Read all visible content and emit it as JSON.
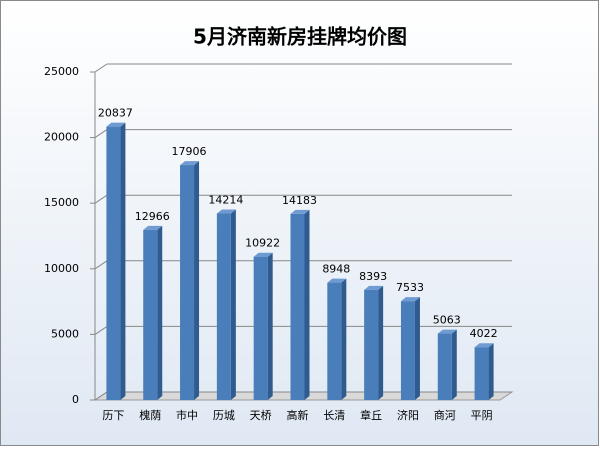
{
  "chart_data": {
    "type": "bar",
    "title": "5月济南新房挂牌均价图",
    "categories": [
      "历下",
      "槐荫",
      "市中",
      "历城",
      "天桥",
      "高新",
      "长清",
      "章丘",
      "济阳",
      "商河",
      "平阴"
    ],
    "values": [
      20837,
      12966,
      17906,
      14214,
      10922,
      14183,
      8948,
      8393,
      7533,
      5063,
      4022
    ],
    "color": "#4a7ebb",
    "ylim": [
      0,
      25000
    ],
    "yticks": [
      0,
      5000,
      10000,
      15000,
      20000,
      25000
    ],
    "grid": true
  }
}
